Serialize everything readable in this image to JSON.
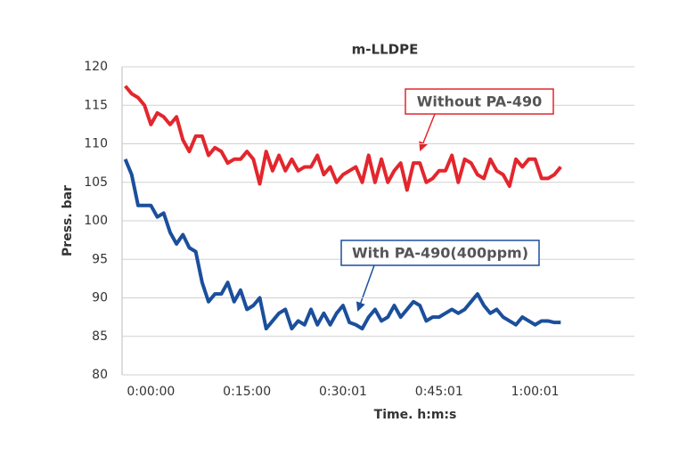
{
  "chart_data": {
    "type": "line",
    "title": "m-LLDPE",
    "x_label": "Time. h:m:s",
    "y_label": "Press. bar",
    "categories": [
      null,
      null,
      null,
      null,
      "0:00:00",
      null,
      null,
      null,
      null,
      null,
      null,
      null,
      null,
      null,
      null,
      null,
      null,
      null,
      null,
      "0:15:00",
      null,
      null,
      null,
      null,
      null,
      null,
      null,
      null,
      null,
      null,
      null,
      null,
      null,
      null,
      "0:30:01",
      null,
      null,
      null,
      null,
      null,
      null,
      null,
      null,
      null,
      null,
      null,
      null,
      null,
      null,
      "0:45:01",
      null,
      null,
      null,
      null,
      null,
      null,
      null,
      null,
      null,
      null,
      null,
      null,
      null,
      null,
      "1:00:01",
      null,
      null,
      null,
      null,
      null,
      null,
      null,
      null,
      null,
      null,
      null,
      null,
      null,
      null,
      null
    ],
    "series": [
      {
        "name": "Without PA-490",
        "color": "#e3262d",
        "values": [
          117.5,
          116.5,
          116,
          115,
          112.5,
          114,
          113.5,
          112.5,
          113.5,
          110.5,
          109,
          111,
          111,
          108.5,
          109.5,
          109,
          107.5,
          108,
          108,
          109,
          108,
          104.8,
          109,
          106.5,
          108.5,
          106.5,
          108,
          106.5,
          107,
          107,
          108.5,
          106,
          107,
          105,
          106,
          106.5,
          107,
          105,
          108.5,
          105,
          108,
          105,
          106.5,
          107.5,
          104,
          107.5,
          107.5,
          105,
          105.5,
          106.5,
          106.5,
          108.5,
          105,
          108,
          107.5,
          106,
          105.5,
          108,
          106.5,
          106,
          104.5,
          108,
          107,
          108,
          108,
          105.5,
          105.5,
          106,
          107,
          null,
          null,
          null,
          null,
          null,
          null,
          null,
          null,
          null,
          null,
          null
        ]
      },
      {
        "name": "With PA-490(400ppm)",
        "color": "#1b4f9c",
        "values": [
          108,
          106,
          102,
          102,
          102,
          100.5,
          101,
          98.5,
          97,
          98.2,
          96.5,
          96,
          92,
          89.5,
          90.5,
          90.5,
          92,
          89.5,
          91,
          88.5,
          89,
          90,
          86,
          87,
          88,
          88.5,
          86,
          87,
          86.5,
          88.5,
          86.5,
          88,
          86.5,
          88,
          89,
          86.8,
          86.5,
          86,
          87.5,
          88.5,
          87,
          87.5,
          89,
          87.5,
          88.5,
          89.5,
          89,
          87,
          87.5,
          87.5,
          88,
          88.5,
          88,
          88.5,
          89.5,
          90.5,
          89,
          88,
          88.5,
          87.5,
          87,
          86.5,
          87.5,
          87,
          86.5,
          87,
          87,
          86.8,
          86.8,
          null,
          null,
          null,
          null,
          null,
          null,
          null,
          null,
          null,
          null,
          null
        ]
      }
    ],
    "annotations": [
      {
        "text": "Without PA-490",
        "color": "#e3262d"
      },
      {
        "text": "With PA-490(400ppm)",
        "color": "#1b4f9c"
      }
    ],
    "ylim": [
      80,
      120
    ],
    "yticks": [
      80,
      85,
      90,
      95,
      100,
      105,
      110,
      115,
      120
    ],
    "grid": true
  }
}
